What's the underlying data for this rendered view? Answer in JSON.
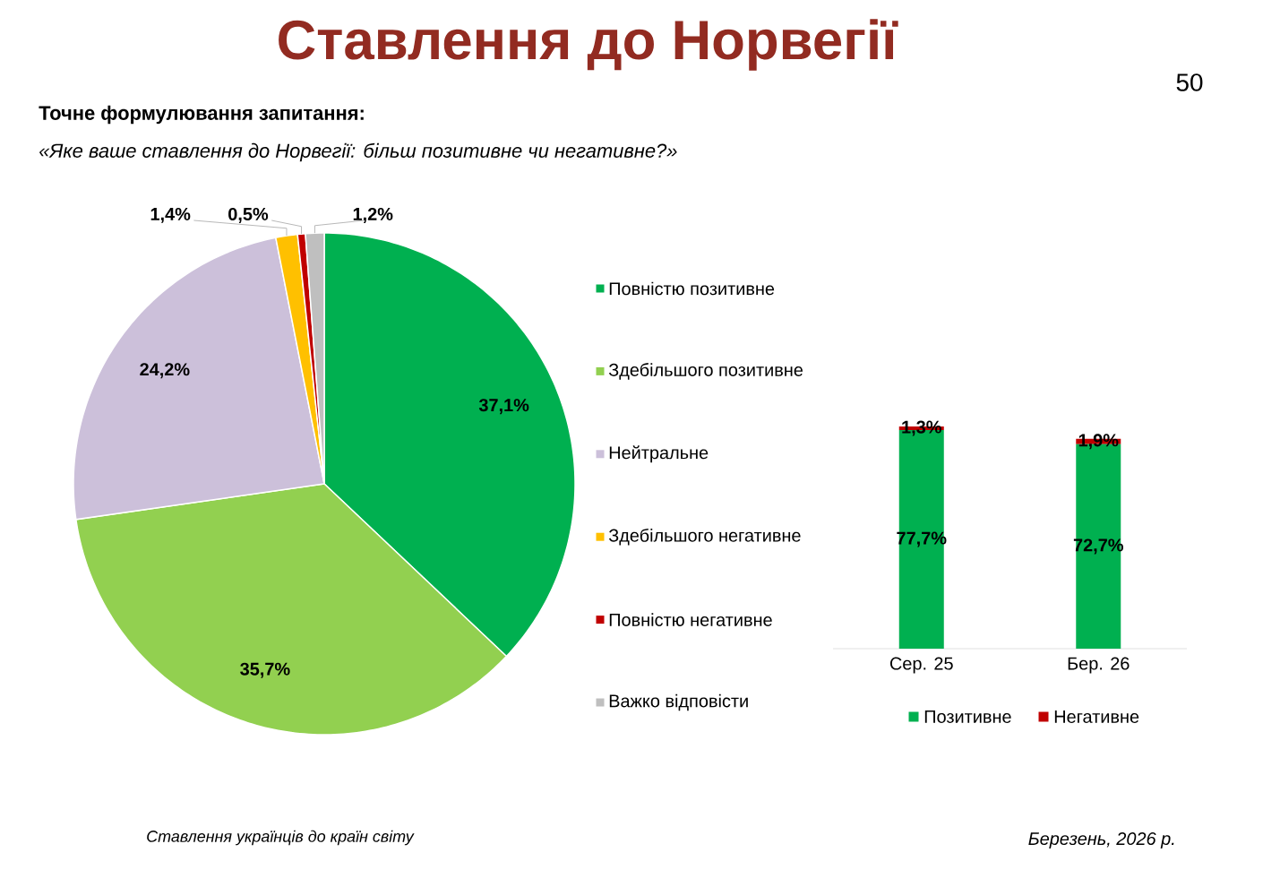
{
  "chart_data": [
    {
      "type": "pie",
      "title": "Ставлення до Норвегії",
      "subtitle": "Точне формулювання запитання:",
      "annotations": [
        "«Яке ваше ставлення до Норвегії: більш позитивне чи негативне?»",
        "50",
        "Ставлення українців до країн світу",
        "Березень, 2026 р."
      ],
      "categories": [
        "Повністю позитивне",
        "Здебільшого позитивне",
        "Нейтральне",
        "Здебільшого негативне",
        "Повністю негативне",
        "Важко відповісти"
      ],
      "values": [
        37.1,
        35.7,
        24.2,
        1.4,
        0.5,
        1.2
      ],
      "value_labels": [
        "37,1%",
        "35,7%",
        "24,2%",
        "1,4%",
        "0,5%",
        "1,2%"
      ],
      "colors": [
        "#00b050",
        "#92d050",
        "#ccc0da",
        "#ffc000",
        "#c00000",
        "#bfbfbf"
      ],
      "legend": "right"
    },
    {
      "type": "bar",
      "stacked": true,
      "categories": [
        "Сер. 25",
        "Бер. 26"
      ],
      "series": [
        {
          "name": "Позитивне",
          "color": "#00b050",
          "values": [
            77.7,
            72.7
          ],
          "value_labels": [
            "77,7%",
            "72,7%"
          ]
        },
        {
          "name": "Негативне",
          "color": "#c00000",
          "values": [
            1.3,
            1.9
          ],
          "value_labels": [
            "1,3%",
            "1,9%"
          ]
        }
      ],
      "legend": "bottom"
    }
  ]
}
